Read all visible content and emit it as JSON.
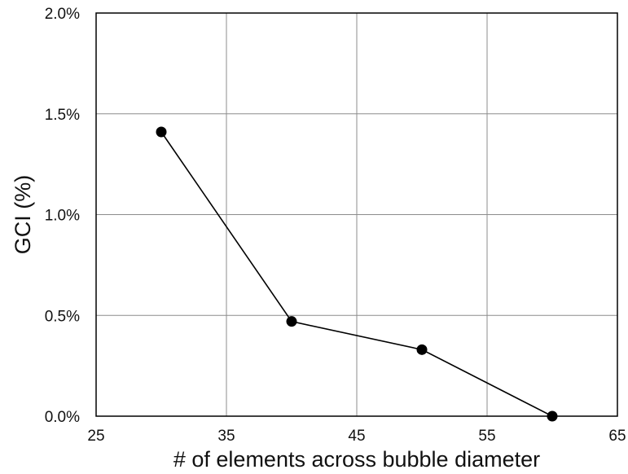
{
  "chart_data": {
    "type": "line",
    "title": "",
    "xlabel": "# of elements across bubble diameter",
    "ylabel": "GCI (%)",
    "xlim": [
      25,
      65
    ],
    "ylim": [
      0,
      2.0
    ],
    "x_ticks": [
      25,
      35,
      45,
      55,
      65
    ],
    "x_tick_labels": [
      "25",
      "35",
      "45",
      "55",
      "65"
    ],
    "y_ticks": [
      0,
      0.5,
      1.0,
      1.5,
      2.0
    ],
    "y_tick_labels": [
      "0.0%",
      "0.5%",
      "1.0%",
      "1.5%",
      "2.0%"
    ],
    "grid": true,
    "legend": "none",
    "series": [
      {
        "x": [
          30,
          40,
          50,
          60
        ],
        "y": [
          1.41,
          0.47,
          0.33,
          0.0
        ],
        "color": "#000000",
        "marker": "circle"
      }
    ]
  }
}
